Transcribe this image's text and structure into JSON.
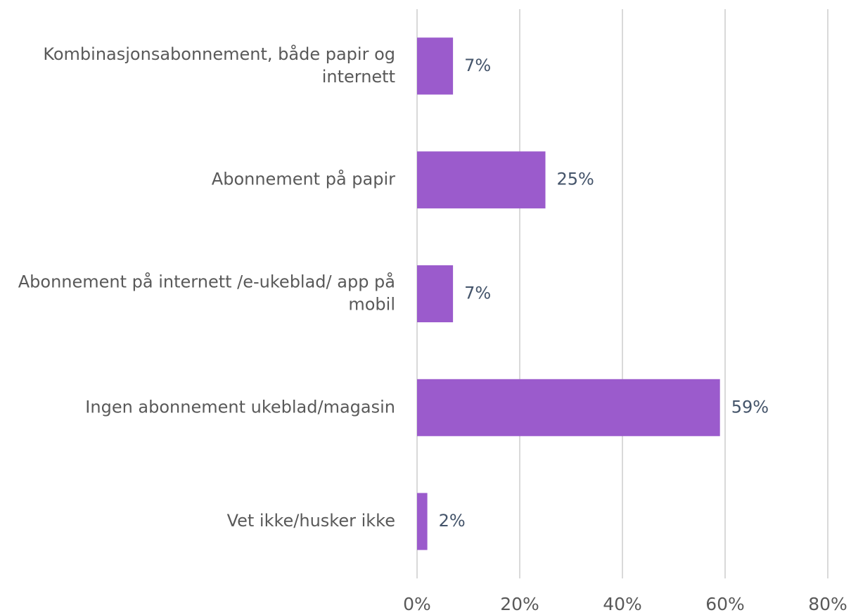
{
  "chart_data": {
    "type": "barh",
    "categories": [
      "Kombinasjonsabonnement, både papir og internett",
      "Abonnement på papir",
      "Abonnement på internett /e-ukeblad/ app på mobil",
      "Ingen abonnement ukeblad/magasin",
      "Vet ikke/husker ikke"
    ],
    "values": [
      7,
      25,
      7,
      59,
      2
    ],
    "value_labels": [
      "7%",
      "25%",
      "7%",
      "59%",
      "2%"
    ],
    "color": "#9b5bcc",
    "xlim": [
      0,
      80
    ],
    "xticks": [
      {
        "value": 0,
        "label": "0%"
      },
      {
        "value": 20,
        "label": "20%"
      },
      {
        "value": 40,
        "label": "40%"
      },
      {
        "value": 60,
        "label": "60%"
      },
      {
        "value": 80,
        "label": "80%"
      }
    ],
    "grid": true
  }
}
